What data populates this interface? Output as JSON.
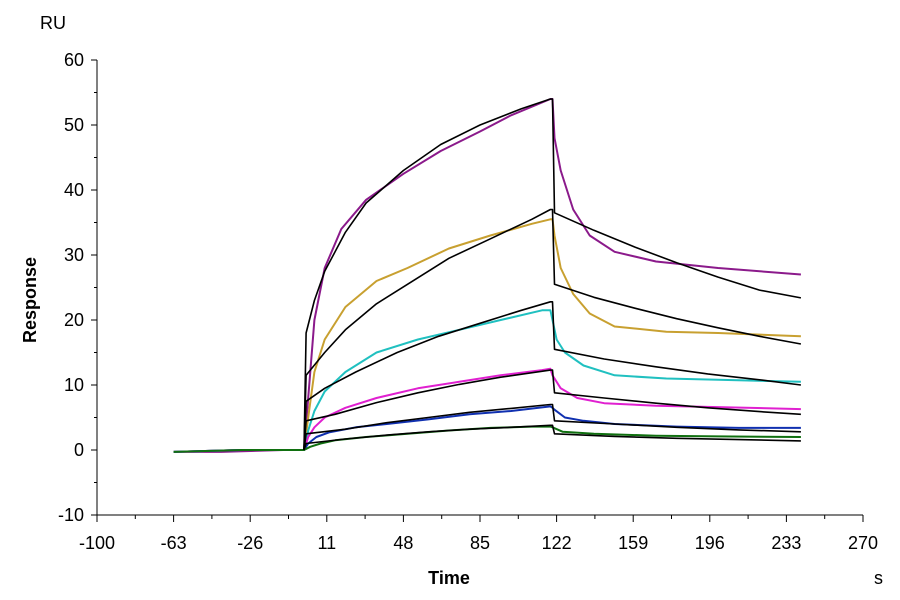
{
  "chart_data": {
    "type": "line",
    "ylabel": "Response",
    "xlabel": "Time",
    "y_unit": "RU",
    "x_unit": "s",
    "xlim": [
      -100,
      270
    ],
    "ylim": [
      -10,
      60
    ],
    "x_ticks": [
      -100,
      -63,
      -26,
      11,
      48,
      85,
      122,
      159,
      196,
      233,
      270
    ],
    "y_ticks": [
      -10,
      0,
      10,
      20,
      30,
      40,
      50,
      60
    ],
    "grid": false,
    "legend": "none",
    "series": [
      {
        "color": "#8b1a8b",
        "kind": "measured",
        "points": [
          [
            -63,
            -0.3
          ],
          [
            -40,
            -0.3
          ],
          [
            -10,
            0
          ],
          [
            0,
            0
          ],
          [
            2,
            8
          ],
          [
            5,
            20
          ],
          [
            10,
            28
          ],
          [
            18,
            34
          ],
          [
            30,
            38.5
          ],
          [
            48,
            42.5
          ],
          [
            66,
            46
          ],
          [
            85,
            49
          ],
          [
            100,
            51.5
          ],
          [
            119,
            54
          ],
          [
            120,
            54
          ],
          [
            121,
            48
          ],
          [
            124,
            43
          ],
          [
            130,
            37
          ],
          [
            138,
            33
          ],
          [
            150,
            30.5
          ],
          [
            170,
            29
          ],
          [
            200,
            28
          ],
          [
            240,
            27
          ]
        ]
      },
      {
        "color": "#c8a030",
        "kind": "measured",
        "points": [
          [
            -63,
            -0.3
          ],
          [
            -30,
            0
          ],
          [
            0,
            0
          ],
          [
            2,
            5
          ],
          [
            5,
            12
          ],
          [
            10,
            17
          ],
          [
            20,
            22
          ],
          [
            35,
            26
          ],
          [
            50,
            28
          ],
          [
            70,
            31
          ],
          [
            90,
            33
          ],
          [
            110,
            34.8
          ],
          [
            119,
            35.5
          ],
          [
            120,
            35.5
          ],
          [
            121,
            33
          ],
          [
            124,
            28
          ],
          [
            130,
            24
          ],
          [
            138,
            21
          ],
          [
            150,
            19
          ],
          [
            175,
            18.2
          ],
          [
            200,
            18
          ],
          [
            240,
            17.5
          ]
        ]
      },
      {
        "color": "#20c0c0",
        "kind": "measured",
        "points": [
          [
            -63,
            -0.3
          ],
          [
            -30,
            0
          ],
          [
            0,
            0
          ],
          [
            2,
            3
          ],
          [
            5,
            6
          ],
          [
            10,
            9
          ],
          [
            20,
            12
          ],
          [
            35,
            15
          ],
          [
            55,
            17
          ],
          [
            75,
            18.5
          ],
          [
            95,
            20
          ],
          [
            115,
            21.5
          ],
          [
            119,
            21.5
          ],
          [
            120,
            20
          ],
          [
            122,
            17
          ],
          [
            126,
            15
          ],
          [
            135,
            13
          ],
          [
            150,
            11.5
          ],
          [
            175,
            11
          ],
          [
            200,
            10.8
          ],
          [
            240,
            10.5
          ]
        ]
      },
      {
        "color": "#e020d0",
        "kind": "measured",
        "points": [
          [
            -63,
            -0.3
          ],
          [
            -30,
            0
          ],
          [
            0,
            0
          ],
          [
            2,
            2
          ],
          [
            5,
            3.5
          ],
          [
            10,
            5
          ],
          [
            20,
            6.5
          ],
          [
            35,
            8
          ],
          [
            55,
            9.5
          ],
          [
            75,
            10.5
          ],
          [
            95,
            11.5
          ],
          [
            115,
            12.3
          ],
          [
            119,
            12.5
          ],
          [
            120,
            11.5
          ],
          [
            124,
            9.5
          ],
          [
            132,
            8
          ],
          [
            145,
            7.2
          ],
          [
            170,
            6.8
          ],
          [
            200,
            6.6
          ],
          [
            240,
            6.3
          ]
        ]
      },
      {
        "color": "#1030b0",
        "kind": "measured",
        "points": [
          [
            -63,
            -0.3
          ],
          [
            -30,
            0
          ],
          [
            0,
            0
          ],
          [
            2,
            1
          ],
          [
            6,
            2
          ],
          [
            12,
            2.7
          ],
          [
            25,
            3.5
          ],
          [
            40,
            4
          ],
          [
            60,
            4.7
          ],
          [
            80,
            5.5
          ],
          [
            100,
            6
          ],
          [
            119,
            6.7
          ],
          [
            120,
            6.5
          ],
          [
            121,
            6.2
          ],
          [
            126,
            5
          ],
          [
            135,
            4.5
          ],
          [
            150,
            4
          ],
          [
            180,
            3.6
          ],
          [
            210,
            3.4
          ],
          [
            240,
            3.4
          ]
        ]
      },
      {
        "color": "#107010",
        "kind": "measured",
        "points": [
          [
            -63,
            -0.3
          ],
          [
            -30,
            0
          ],
          [
            0,
            0
          ],
          [
            3,
            0.5
          ],
          [
            8,
            1
          ],
          [
            15,
            1.5
          ],
          [
            30,
            2
          ],
          [
            50,
            2.5
          ],
          [
            70,
            3
          ],
          [
            90,
            3.4
          ],
          [
            110,
            3.6
          ],
          [
            119,
            3.6
          ],
          [
            120,
            3.5
          ],
          [
            125,
            2.8
          ],
          [
            140,
            2.5
          ],
          [
            170,
            2.2
          ],
          [
            200,
            2.1
          ],
          [
            240,
            2
          ]
        ]
      },
      {
        "color": "#000000",
        "kind": "fit",
        "points": [
          [
            0,
            0
          ],
          [
            1,
            18
          ],
          [
            5,
            23
          ],
          [
            10,
            27.5
          ],
          [
            20,
            33.5
          ],
          [
            30,
            38
          ],
          [
            48,
            43
          ],
          [
            66,
            47
          ],
          [
            85,
            50
          ],
          [
            105,
            52.5
          ],
          [
            119,
            54
          ],
          [
            120,
            54
          ],
          [
            121,
            36.5
          ],
          [
            140,
            33.8
          ],
          [
            160,
            31.2
          ],
          [
            180,
            28.8
          ],
          [
            200,
            26.6
          ],
          [
            220,
            24.6
          ],
          [
            240,
            23.4
          ]
        ]
      },
      {
        "color": "#000000",
        "kind": "fit",
        "points": [
          [
            0,
            0
          ],
          [
            1,
            11.5
          ],
          [
            10,
            15
          ],
          [
            20,
            18.5
          ],
          [
            35,
            22.5
          ],
          [
            50,
            25.5
          ],
          [
            70,
            29.5
          ],
          [
            90,
            32.5
          ],
          [
            110,
            35.5
          ],
          [
            119,
            37
          ],
          [
            120,
            37
          ],
          [
            121,
            25.5
          ],
          [
            140,
            23.5
          ],
          [
            160,
            21.8
          ],
          [
            180,
            20.2
          ],
          [
            200,
            18.8
          ],
          [
            220,
            17.5
          ],
          [
            240,
            16.3
          ]
        ]
      },
      {
        "color": "#000000",
        "kind": "fit",
        "points": [
          [
            0,
            0
          ],
          [
            1,
            7.5
          ],
          [
            10,
            9.5
          ],
          [
            25,
            12
          ],
          [
            45,
            15
          ],
          [
            65,
            17.5
          ],
          [
            85,
            19.5
          ],
          [
            105,
            21.5
          ],
          [
            119,
            22.8
          ],
          [
            120,
            22.8
          ],
          [
            121,
            15.5
          ],
          [
            145,
            14
          ],
          [
            170,
            12.8
          ],
          [
            195,
            11.7
          ],
          [
            220,
            10.8
          ],
          [
            240,
            10
          ]
        ]
      },
      {
        "color": "#000000",
        "kind": "fit",
        "points": [
          [
            0,
            0
          ],
          [
            1,
            4.5
          ],
          [
            15,
            5.5
          ],
          [
            35,
            7.3
          ],
          [
            55,
            8.8
          ],
          [
            75,
            10.1
          ],
          [
            95,
            11.2
          ],
          [
            119,
            12.3
          ],
          [
            120,
            12.3
          ],
          [
            121,
            8.8
          ],
          [
            145,
            8
          ],
          [
            170,
            7.2
          ],
          [
            195,
            6.5
          ],
          [
            220,
            5.9
          ],
          [
            240,
            5.5
          ]
        ]
      },
      {
        "color": "#000000",
        "kind": "fit",
        "points": [
          [
            0,
            0
          ],
          [
            1,
            2.5
          ],
          [
            20,
            3.2
          ],
          [
            40,
            4.2
          ],
          [
            60,
            5
          ],
          [
            80,
            5.8
          ],
          [
            100,
            6.4
          ],
          [
            119,
            7
          ],
          [
            120,
            7
          ],
          [
            121,
            4.5
          ],
          [
            150,
            4
          ],
          [
            180,
            3.5
          ],
          [
            210,
            3.1
          ],
          [
            240,
            2.8
          ]
        ]
      },
      {
        "color": "#000000",
        "kind": "fit",
        "points": [
          [
            0,
            0
          ],
          [
            1,
            1
          ],
          [
            20,
            1.7
          ],
          [
            40,
            2.3
          ],
          [
            60,
            2.8
          ],
          [
            80,
            3.2
          ],
          [
            100,
            3.5
          ],
          [
            119,
            3.8
          ],
          [
            120,
            3.8
          ],
          [
            121,
            2.5
          ],
          [
            150,
            2.1
          ],
          [
            180,
            1.8
          ],
          [
            210,
            1.6
          ],
          [
            240,
            1.4
          ]
        ]
      }
    ]
  }
}
